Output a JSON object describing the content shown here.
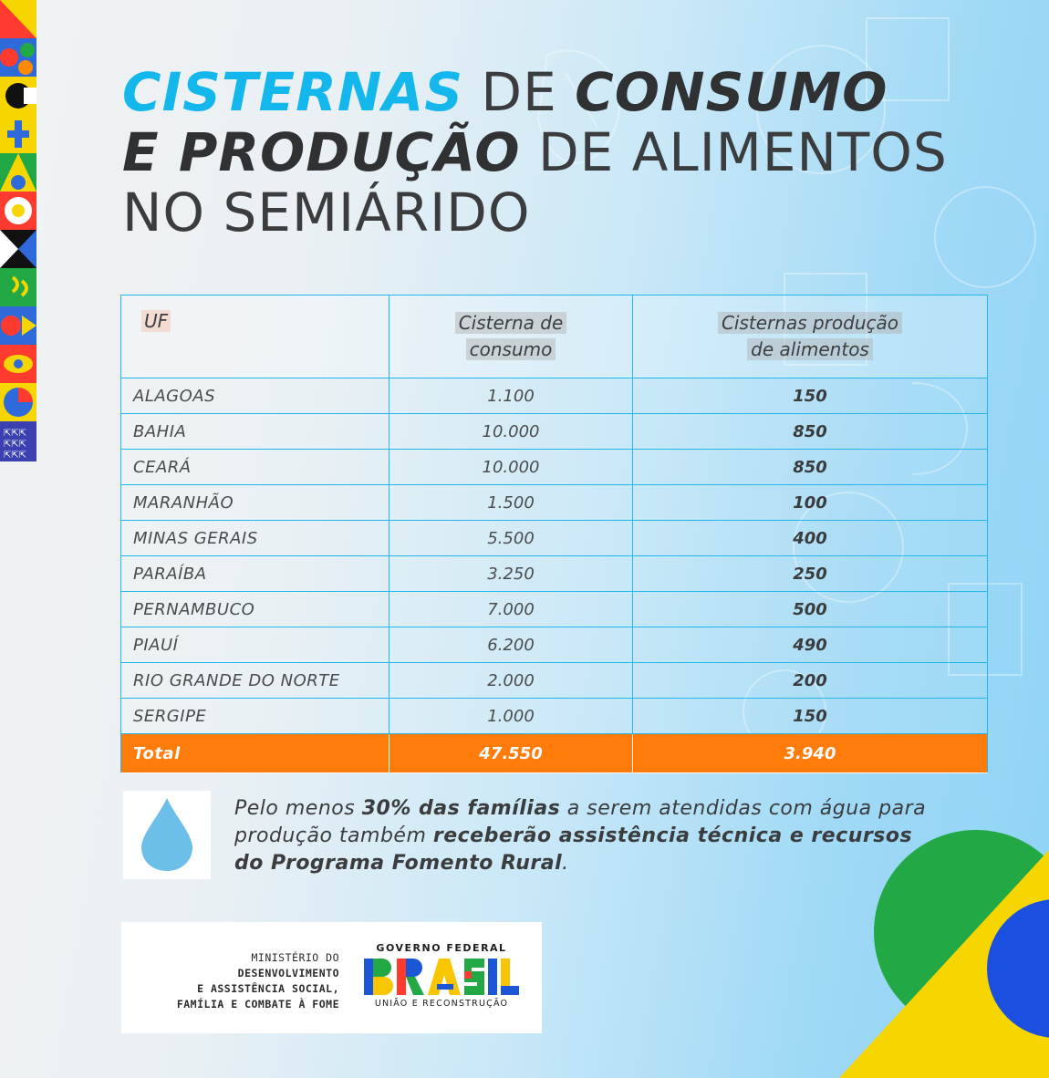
{
  "title": {
    "line1_highlight": "CISTERNAS",
    "line1_connector": "DE",
    "line1_bold": "CONSUMO",
    "line2_bold": "E PRODUÇÃO",
    "line2_rest": "DE ALIMENTOS",
    "line3": "NO SEMIÁRIDO"
  },
  "table": {
    "headers": {
      "uf": "UF",
      "consumo_line1": "Cisterna de",
      "consumo_line2": "consumo",
      "producao_line1": "Cisternas produção",
      "producao_line2": "de alimentos"
    },
    "rows": [
      {
        "uf": "ALAGOAS",
        "consumo": "1.100",
        "producao": "150"
      },
      {
        "uf": "BAHIA",
        "consumo": "10.000",
        "producao": "850"
      },
      {
        "uf": "CEARÁ",
        "consumo": "10.000",
        "producao": "850"
      },
      {
        "uf": "MARANHÃO",
        "consumo": "1.500",
        "producao": "100"
      },
      {
        "uf": "MINAS GERAIS",
        "consumo": "5.500",
        "producao": "400"
      },
      {
        "uf": "PARAÍBA",
        "consumo": "3.250",
        "producao": "250"
      },
      {
        "uf": "PERNAMBUCO",
        "consumo": "7.000",
        "producao": "500"
      },
      {
        "uf": "PIAUÍ",
        "consumo": "6.200",
        "producao": "490"
      },
      {
        "uf": "RIO GRANDE DO NORTE",
        "consumo": "2.000",
        "producao": "200"
      },
      {
        "uf": "SERGIPE",
        "consumo": "1.000",
        "producao": "150"
      }
    ],
    "total": {
      "label": "Total",
      "consumo": "47.550",
      "producao": "3.940"
    }
  },
  "note": {
    "part1": "Pelo menos ",
    "part2_bold": "30% das famílias",
    "part3": " a serem atendidas com água para produção também ",
    "part4_bold": "receberão assistência técnica e recursos do Programa Fomento Rural",
    "part5": "."
  },
  "footer": {
    "ministry_line1": "MINISTÉRIO DO",
    "ministry_line2": "DESENVOLVIMENTO",
    "ministry_line3": "E ASSISTÊNCIA SOCIAL,",
    "ministry_line4": "FAMÍLIA E COMBATE À FOME",
    "gov_header": "GOVERNO FEDERAL",
    "brasil_wordmark": "BRASIL",
    "gov_slogan": "UNIÃO E RECONSTRUÇÃO"
  },
  "icons": [
    "water-drop-icon",
    "brasil-logo",
    "flag-corner-decoration",
    "side-pattern-strip"
  ],
  "colors": {
    "highlight_cyan": "#13b7ec",
    "table_border": "#22b6ea",
    "total_row": "#ff7b0a",
    "drop": "#6bbfe8"
  }
}
